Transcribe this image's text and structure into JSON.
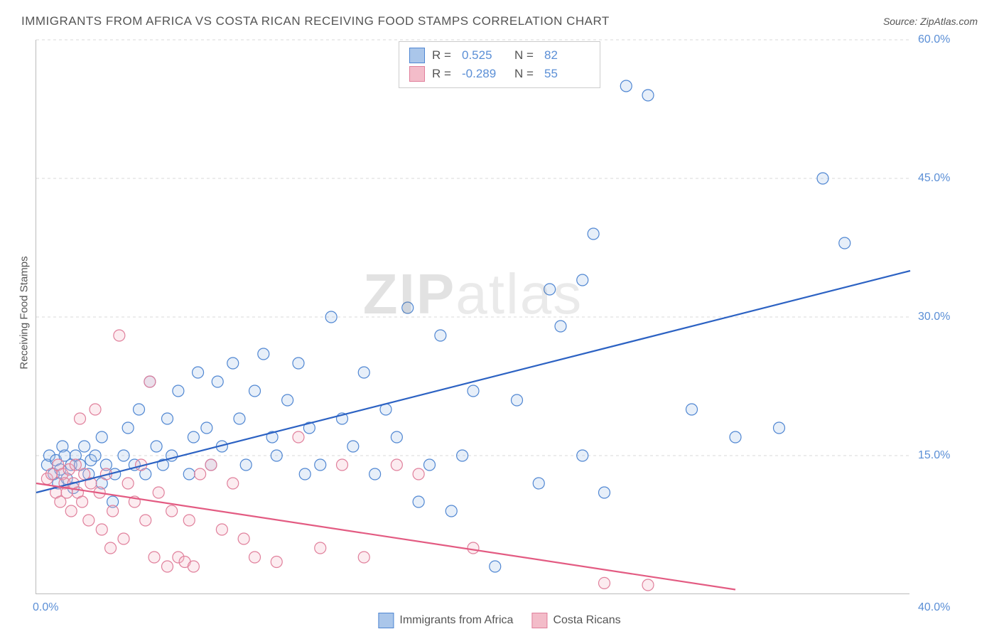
{
  "title": "IMMIGRANTS FROM AFRICA VS COSTA RICAN RECEIVING FOOD STAMPS CORRELATION CHART",
  "source_label": "Source: ",
  "source_name": "ZipAtlas.com",
  "y_axis_label": "Receiving Food Stamps",
  "watermark_bold": "ZIP",
  "watermark_light": "atlas",
  "chart": {
    "type": "scatter",
    "xlim": [
      0,
      40
    ],
    "ylim": [
      0,
      60
    ],
    "x_ticks": [
      {
        "v": 0,
        "label": "0.0%"
      },
      {
        "v": 40,
        "label": "40.0%"
      }
    ],
    "y_ticks": [
      {
        "v": 15,
        "label": "15.0%"
      },
      {
        "v": 30,
        "label": "30.0%"
      },
      {
        "v": 45,
        "label": "45.0%"
      },
      {
        "v": 60,
        "label": "60.0%"
      }
    ],
    "grid_color": "#d9d9d9",
    "axis_color": "#bbbbbb",
    "background_color": "#ffffff",
    "tick_label_color": "#5b8fd6",
    "tick_fontsize": 16,
    "title_color": "#555555",
    "title_fontsize": 17,
    "marker_radius": 8,
    "marker_stroke_width": 1.2,
    "marker_fill_opacity": 0.28,
    "trend_line_width": 2.2,
    "series": [
      {
        "name": "Immigrants from Africa",
        "key": "africa",
        "color_stroke": "#4f86d2",
        "color_fill": "#aac6ea",
        "trend_color": "#2c62c3",
        "R": "0.525",
        "N": "82",
        "trend": {
          "x1": 0,
          "y1": 11,
          "x2": 40,
          "y2": 35
        },
        "points": [
          [
            0.5,
            14
          ],
          [
            0.6,
            15
          ],
          [
            0.8,
            13
          ],
          [
            0.9,
            14.5
          ],
          [
            1.0,
            12
          ],
          [
            1.2,
            16
          ],
          [
            1.1,
            13.5
          ],
          [
            1.3,
            15
          ],
          [
            1.4,
            12.5
          ],
          [
            1.6,
            14
          ],
          [
            1.8,
            15
          ],
          [
            1.7,
            11.5
          ],
          [
            2.0,
            14
          ],
          [
            2.2,
            16
          ],
          [
            2.4,
            13
          ],
          [
            2.5,
            14.5
          ],
          [
            2.7,
            15
          ],
          [
            3.0,
            17
          ],
          [
            3.0,
            12
          ],
          [
            3.2,
            14
          ],
          [
            3.5,
            10
          ],
          [
            3.6,
            13
          ],
          [
            4.0,
            15
          ],
          [
            4.2,
            18
          ],
          [
            4.5,
            14
          ],
          [
            4.7,
            20
          ],
          [
            5.0,
            13
          ],
          [
            5.2,
            23
          ],
          [
            5.5,
            16
          ],
          [
            5.8,
            14
          ],
          [
            6.0,
            19
          ],
          [
            6.2,
            15
          ],
          [
            6.5,
            22
          ],
          [
            7.0,
            13
          ],
          [
            7.2,
            17
          ],
          [
            7.4,
            24
          ],
          [
            7.8,
            18
          ],
          [
            8.0,
            14
          ],
          [
            8.3,
            23
          ],
          [
            8.5,
            16
          ],
          [
            9.0,
            25
          ],
          [
            9.3,
            19
          ],
          [
            9.6,
            14
          ],
          [
            10.0,
            22
          ],
          [
            10.4,
            26
          ],
          [
            10.8,
            17
          ],
          [
            11.0,
            15
          ],
          [
            11.5,
            21
          ],
          [
            12.0,
            25
          ],
          [
            12.3,
            13
          ],
          [
            12.5,
            18
          ],
          [
            13.0,
            14
          ],
          [
            13.5,
            30
          ],
          [
            14.0,
            19
          ],
          [
            14.5,
            16
          ],
          [
            15.0,
            24
          ],
          [
            15.5,
            13
          ],
          [
            16.0,
            20
          ],
          [
            16.5,
            17
          ],
          [
            17.0,
            31
          ],
          [
            17.5,
            10
          ],
          [
            18.0,
            14
          ],
          [
            18.5,
            28
          ],
          [
            19.0,
            9
          ],
          [
            19.5,
            15
          ],
          [
            20.0,
            22
          ],
          [
            21.0,
            3
          ],
          [
            22.0,
            21
          ],
          [
            23.0,
            12
          ],
          [
            24.0,
            29
          ],
          [
            25.0,
            34
          ],
          [
            25.5,
            39
          ],
          [
            26.0,
            11
          ],
          [
            27.0,
            55
          ],
          [
            28.0,
            54
          ],
          [
            30.0,
            20
          ],
          [
            32.0,
            17
          ],
          [
            34.0,
            18
          ],
          [
            36.0,
            45
          ],
          [
            37.0,
            38
          ],
          [
            25.0,
            15
          ],
          [
            23.5,
            33
          ]
        ]
      },
      {
        "name": "Costa Ricans",
        "key": "costa",
        "color_stroke": "#e07f9b",
        "color_fill": "#f3bcc9",
        "trend_color": "#e35b82",
        "R": "-0.289",
        "N": "55",
        "trend": {
          "x1": 0,
          "y1": 12,
          "x2": 32,
          "y2": 0.5
        },
        "points": [
          [
            0.5,
            12.5
          ],
          [
            0.7,
            13
          ],
          [
            0.9,
            11
          ],
          [
            1.0,
            14
          ],
          [
            1.1,
            10
          ],
          [
            1.2,
            13
          ],
          [
            1.3,
            12
          ],
          [
            1.4,
            11
          ],
          [
            1.5,
            13.5
          ],
          [
            1.6,
            9
          ],
          [
            1.7,
            12
          ],
          [
            1.8,
            14
          ],
          [
            1.9,
            11
          ],
          [
            2.0,
            19
          ],
          [
            2.1,
            10
          ],
          [
            2.2,
            13
          ],
          [
            2.4,
            8
          ],
          [
            2.5,
            12
          ],
          [
            2.7,
            20
          ],
          [
            2.9,
            11
          ],
          [
            3.0,
            7
          ],
          [
            3.2,
            13
          ],
          [
            3.4,
            5
          ],
          [
            3.5,
            9
          ],
          [
            3.8,
            28
          ],
          [
            4.0,
            6
          ],
          [
            4.2,
            12
          ],
          [
            4.5,
            10
          ],
          [
            4.8,
            14
          ],
          [
            5.0,
            8
          ],
          [
            5.2,
            23
          ],
          [
            5.4,
            4
          ],
          [
            5.6,
            11
          ],
          [
            6.0,
            3
          ],
          [
            6.2,
            9
          ],
          [
            6.5,
            4
          ],
          [
            6.8,
            3.5
          ],
          [
            7.0,
            8
          ],
          [
            7.2,
            3
          ],
          [
            7.5,
            13
          ],
          [
            8.0,
            14
          ],
          [
            8.5,
            7
          ],
          [
            9.0,
            12
          ],
          [
            9.5,
            6
          ],
          [
            10.0,
            4
          ],
          [
            11.0,
            3.5
          ],
          [
            12.0,
            17
          ],
          [
            13.0,
            5
          ],
          [
            14.0,
            14
          ],
          [
            15.0,
            4
          ],
          [
            16.5,
            14
          ],
          [
            17.5,
            13
          ],
          [
            20.0,
            5
          ],
          [
            26.0,
            1.2
          ],
          [
            28.0,
            1
          ]
        ]
      }
    ],
    "stats_legend": {
      "R_label": "R =",
      "N_label": "N =",
      "value_color": "#5b8fd6",
      "label_color": "#555555",
      "border_color": "#cccccc"
    }
  }
}
